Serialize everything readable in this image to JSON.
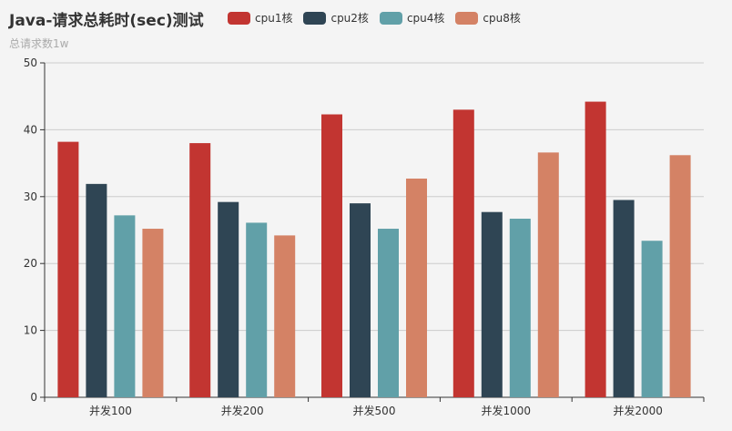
{
  "chart_data": {
    "type": "bar",
    "title": "Java-请求总耗时(sec)测试",
    "subtitle": "总请求数1w",
    "categories": [
      "并发100",
      "并发200",
      "并发500",
      "并发1000",
      "并发2000"
    ],
    "series": [
      {
        "name": "cpu1核",
        "color": "#c23531",
        "values": [
          38.2,
          38.0,
          42.3,
          43.0,
          44.2
        ]
      },
      {
        "name": "cpu2核",
        "color": "#2f4554",
        "values": [
          31.9,
          29.2,
          29.0,
          27.7,
          29.5
        ]
      },
      {
        "name": "cpu4核",
        "color": "#61a0a8",
        "values": [
          27.2,
          26.1,
          25.2,
          26.7,
          23.4
        ]
      },
      {
        "name": "cpu8核",
        "color": "#d48265",
        "values": [
          25.2,
          24.2,
          32.7,
          36.6,
          36.2
        ]
      }
    ],
    "xlabel": "",
    "ylabel": "",
    "ylim": [
      0,
      50
    ],
    "yticks": [
      0,
      10,
      20,
      30,
      40,
      50
    ],
    "grid": true,
    "legend_position": "top"
  }
}
